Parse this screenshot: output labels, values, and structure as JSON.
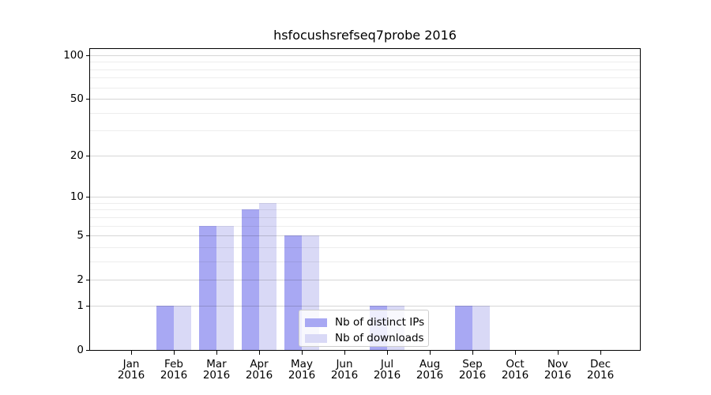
{
  "chart_data": {
    "type": "bar",
    "title": "hsfocushsrefseq7probe 2016",
    "categories": [
      "Jan 2016",
      "Feb 2016",
      "Mar 2016",
      "Apr 2016",
      "May 2016",
      "Jun 2016",
      "Jul 2016",
      "Aug 2016",
      "Sep 2016",
      "Oct 2016",
      "Nov 2016",
      "Dec 2016"
    ],
    "series": [
      {
        "name": "Nb of distinct IPs",
        "color": "#a8a8f3",
        "values": [
          0,
          1,
          6,
          8,
          5,
          0,
          1,
          0,
          1,
          0,
          0,
          0
        ]
      },
      {
        "name": "Nb of downloads",
        "color": "#d9d9f6",
        "values": [
          0,
          1,
          6,
          9,
          5,
          0,
          1,
          0,
          1,
          0,
          0,
          0
        ]
      }
    ],
    "xlabel": "",
    "ylabel": "",
    "y_scale": "log10(1+y)",
    "ylim": [
      0,
      110
    ],
    "y_ticks": [
      {
        "label": "0",
        "value": 0
      },
      {
        "label": "1",
        "value": 1
      },
      {
        "label": "2",
        "value": 2
      },
      {
        "label": "5",
        "value": 5
      },
      {
        "label": "10",
        "value": 10
      },
      {
        "label": "20",
        "value": 20
      },
      {
        "label": "50",
        "value": 50
      },
      {
        "label": "100",
        "value": 100
      }
    ],
    "y_minor_gridlines": [
      3,
      4,
      6,
      7,
      8,
      9,
      30,
      40,
      60,
      70,
      80,
      90
    ],
    "grid": "horizontal major+minor",
    "legend_position": "inside lower-center"
  },
  "colors": {
    "background": "#ffffff",
    "axis": "#000000",
    "series_dark": "#a8a8f3",
    "series_light": "#d9d9f6"
  }
}
